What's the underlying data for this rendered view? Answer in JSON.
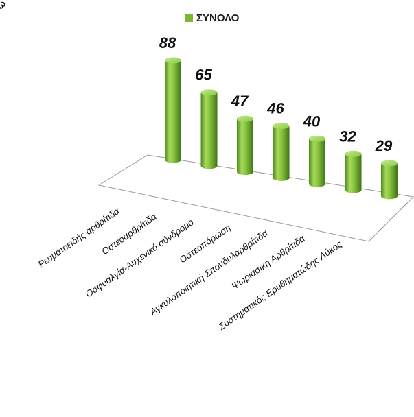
{
  "chart_data": {
    "type": "bar",
    "title": "",
    "legend": {
      "entries": [
        "ΣΥΝΟΛΟ"
      ],
      "placement": "top-center"
    },
    "categories": [
      "Ρευματοειδής αρθρίτιδα",
      "Οστεοαρθρίτιδα",
      "Οσφυαλγία-Αυχενικό σύνδρομο",
      "Οστεοπόρωση",
      "Αγκυλοποιητική Σπονδυλαρθρίτιδα",
      "Ψωριασική Αρθρίτιδα",
      "Συστηματικός Ερυθηματώδης Λύκος"
    ],
    "series": [
      {
        "name": "ΣΥΝΟΛΟ",
        "values": [
          88,
          65,
          47,
          46,
          40,
          32,
          29
        ],
        "color": "#7cb733"
      }
    ],
    "data_labels": [
      "88",
      "65",
      "47",
      "46",
      "40",
      "32",
      "29"
    ],
    "style": "3d-cylinder",
    "grid": false,
    "ylim": [
      0,
      88
    ]
  }
}
